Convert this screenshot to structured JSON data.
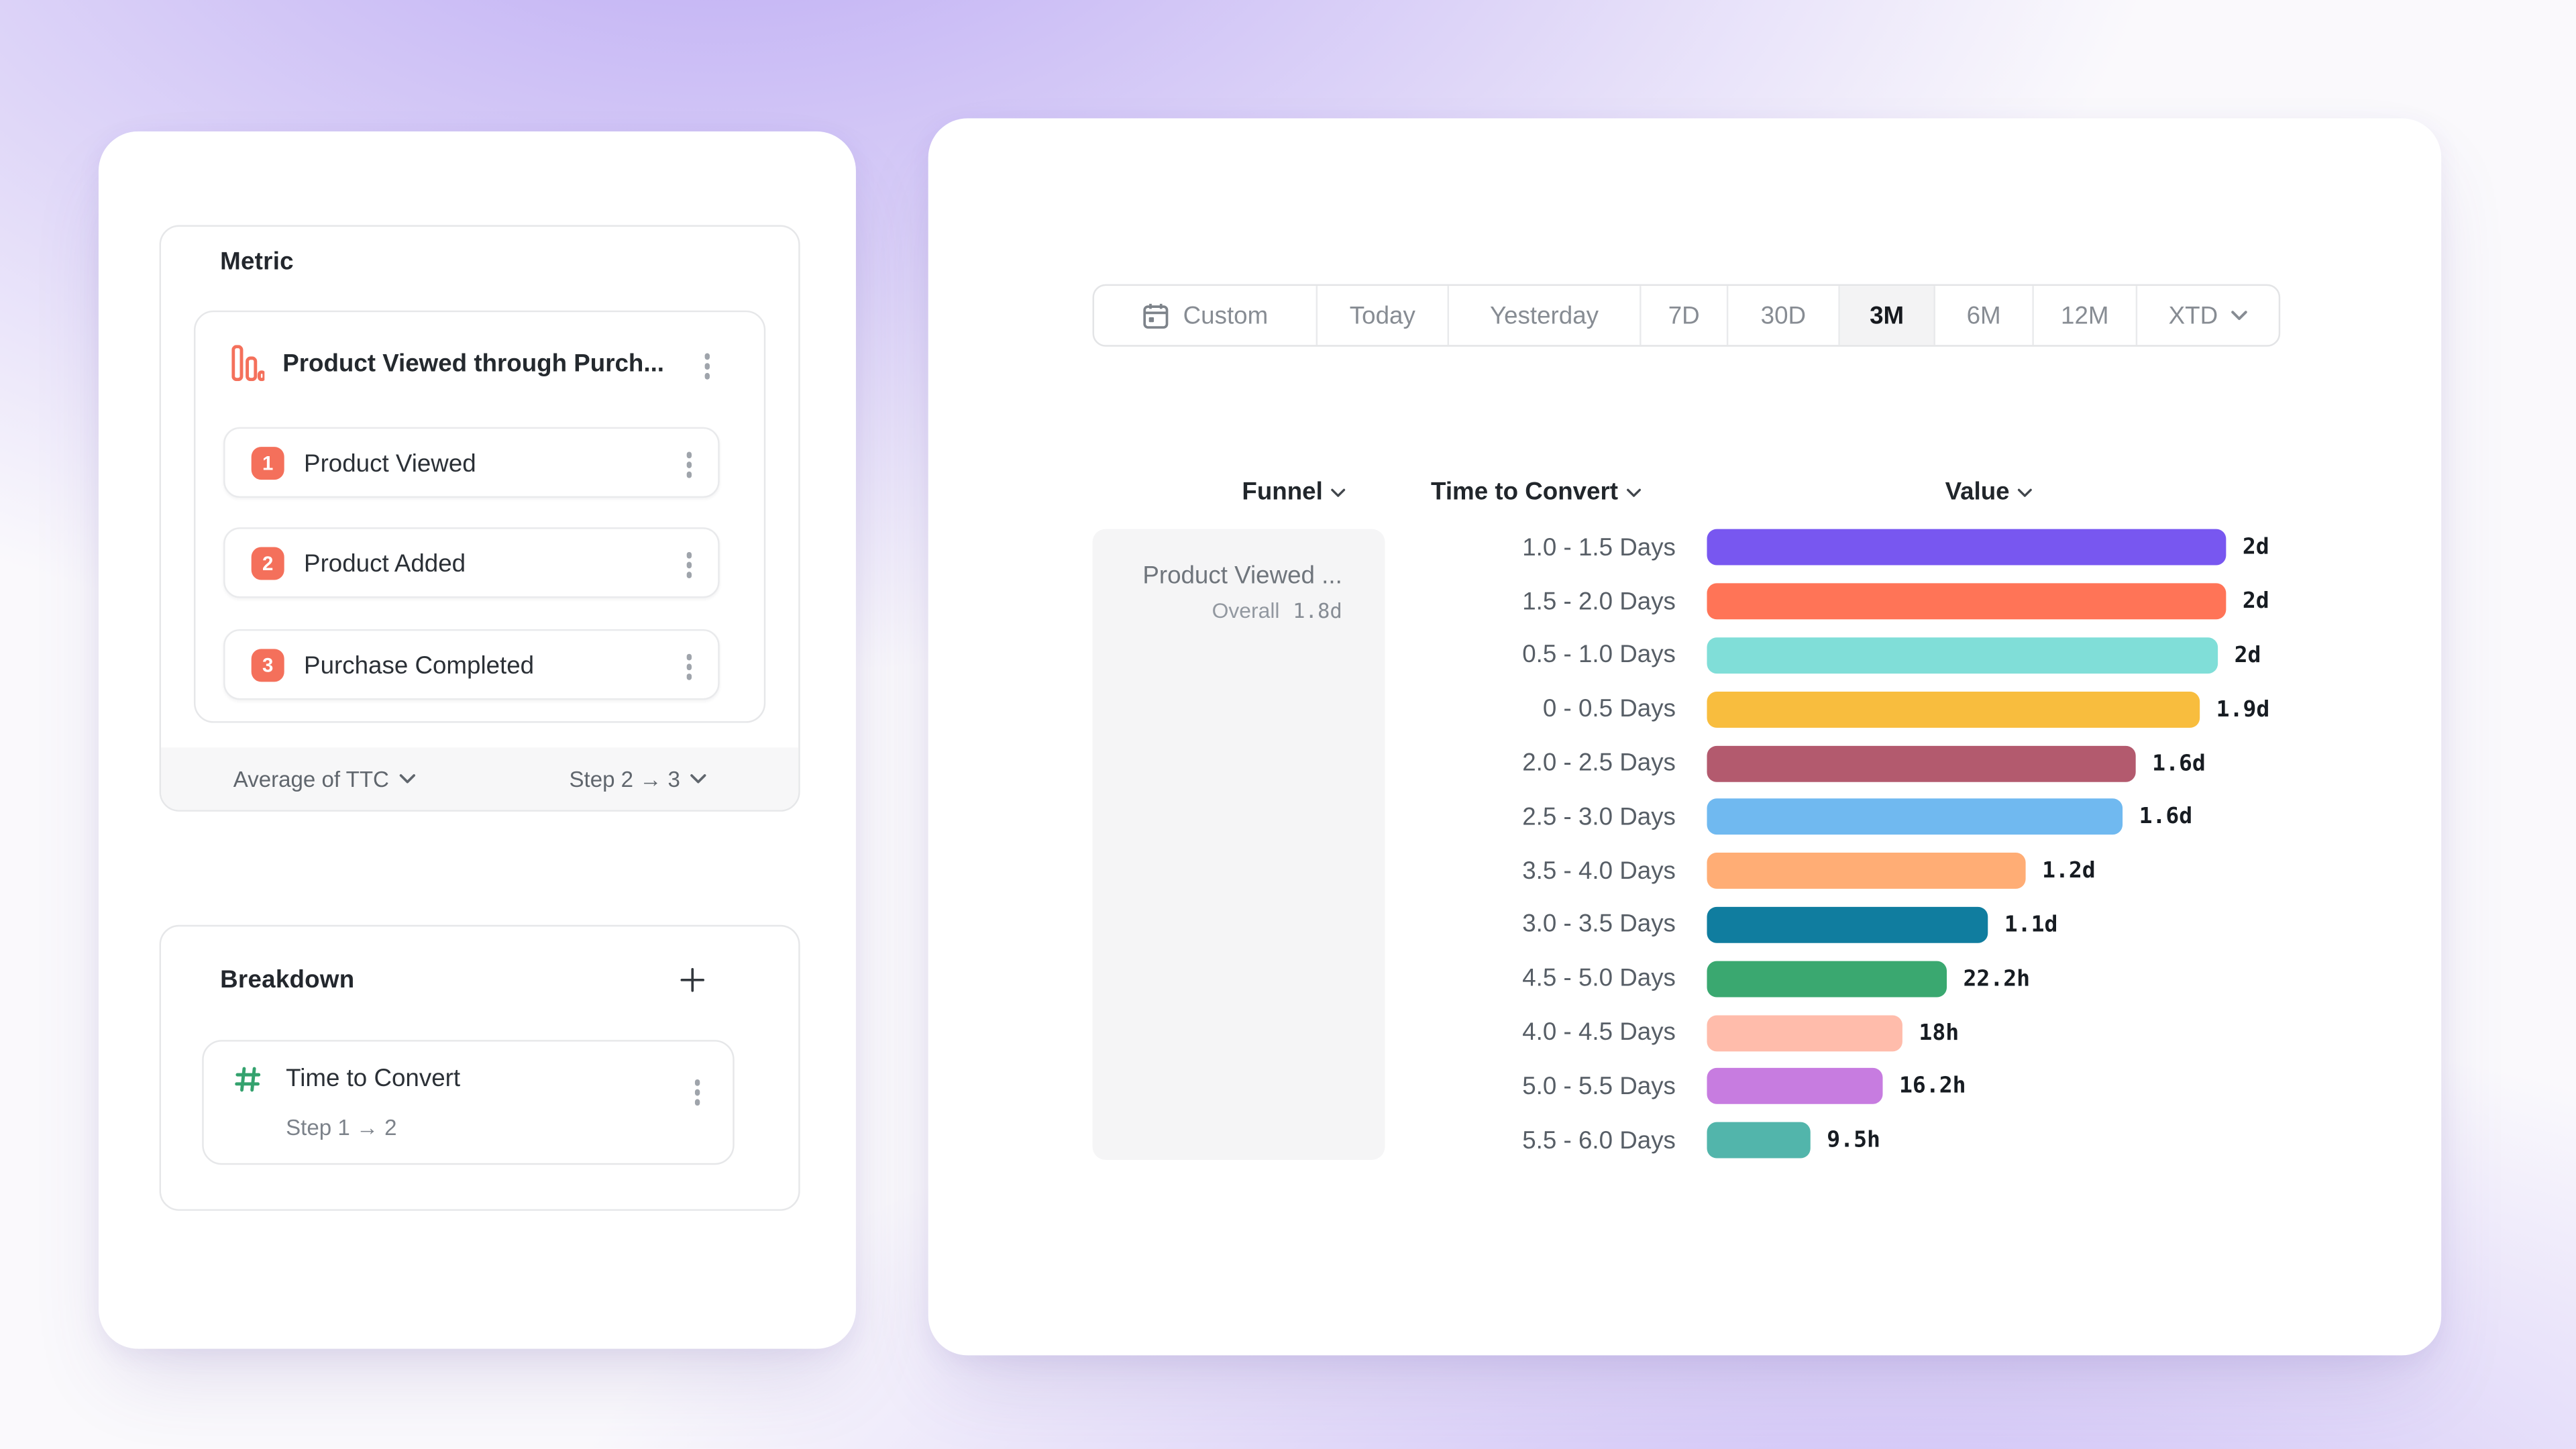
{
  "colors": {
    "accent_salmon": "#F4705B",
    "hash_green": "#34A26E",
    "selected_range_bg": "#F3F3F4",
    "funnel_cell_bg": "#F5F5F6"
  },
  "metric_panel": {
    "title": "Metric",
    "funnel": {
      "name": "Product Viewed through Purch...",
      "steps": [
        {
          "number": "1",
          "label": "Product Viewed"
        },
        {
          "number": "2",
          "label": "Product Added"
        },
        {
          "number": "3",
          "label": "Purchase Completed"
        }
      ],
      "aggregation_label": "Average of TTC",
      "step_range_label": "Step 2 → 3"
    },
    "breakdown": {
      "title": "Breakdown",
      "property": {
        "label": "Time to Convert",
        "sublabel": "Step 1 → 2"
      }
    }
  },
  "report_panel": {
    "date_picker": {
      "options": [
        {
          "label": "Custom",
          "icon": "calendar",
          "selected": false
        },
        {
          "label": "Today",
          "selected": false
        },
        {
          "label": "Yesterday",
          "selected": false
        },
        {
          "label": "7D",
          "selected": false
        },
        {
          "label": "30D",
          "selected": false
        },
        {
          "label": "3M",
          "selected": true
        },
        {
          "label": "6M",
          "selected": false
        },
        {
          "label": "12M",
          "selected": false
        },
        {
          "label": "XTD",
          "chevron": true,
          "selected": false
        }
      ]
    },
    "table": {
      "headers": [
        {
          "label": "Funnel"
        },
        {
          "label": "Time to Convert"
        },
        {
          "label": "Value"
        }
      ],
      "funnel_cell": {
        "name": "Product Viewed ...",
        "overall_label": "Overall",
        "overall_value": "1.8d"
      },
      "rows": [
        {
          "label": "1.0 - 1.5 Days",
          "value": "2d",
          "value_days": 2.0,
          "color": "#7857F0"
        },
        {
          "label": "1.5 - 2.0 Days",
          "value": "2d",
          "value_days": 2.0,
          "color": "#FF7457"
        },
        {
          "label": "0.5 - 1.0 Days",
          "value": "2d",
          "value_days": 1.97,
          "color": "#80DED8"
        },
        {
          "label": "0 - 0.5 Days",
          "value": "1.9d",
          "value_days": 1.9,
          "color": "#F8BD3E"
        },
        {
          "label": "2.0 - 2.5 Days",
          "value": "1.6d",
          "value_days": 1.65,
          "color": "#B35A6E"
        },
        {
          "label": "2.5 - 3.0 Days",
          "value": "1.6d",
          "value_days": 1.6,
          "color": "#70B9F0"
        },
        {
          "label": "3.5 - 4.0 Days",
          "value": "1.2d",
          "value_days": 1.23,
          "color": "#FFAD75"
        },
        {
          "label": "3.0 - 3.5 Days",
          "value": "1.1d",
          "value_days": 1.08,
          "color": "#107D9F"
        },
        {
          "label": "4.5 - 5.0 Days",
          "value": "22.2h",
          "value_days": 0.925,
          "color": "#3AA870"
        },
        {
          "label": "4.0 - 4.5 Days",
          "value": "18h",
          "value_days": 0.75,
          "color": "#FFBCAB"
        },
        {
          "label": "5.0 - 5.5 Days",
          "value": "16.2h",
          "value_days": 0.675,
          "color": "#C77CE0"
        },
        {
          "label": "5.5 - 6.0 Days",
          "value": "9.5h",
          "value_days": 0.396,
          "color": "#52B5AB"
        }
      ]
    }
  },
  "chart_data": {
    "type": "bar",
    "orientation": "horizontal",
    "title": "Time to Convert",
    "categories": [
      "1.0 - 1.5 Days",
      "1.5 - 2.0 Days",
      "0.5 - 1.0 Days",
      "0 - 0.5 Days",
      "2.0 - 2.5 Days",
      "2.5 - 3.0 Days",
      "3.5 - 4.0 Days",
      "3.0 - 3.5 Days",
      "4.5 - 5.0 Days",
      "4.0 - 4.5 Days",
      "5.0 - 5.5 Days",
      "5.5 - 6.0 Days"
    ],
    "values_display": [
      "2d",
      "2d",
      "2d",
      "1.9d",
      "1.6d",
      "1.6d",
      "1.2d",
      "1.1d",
      "22.2h",
      "18h",
      "16.2h",
      "9.5h"
    ],
    "values_days": [
      2.0,
      2.0,
      1.97,
      1.9,
      1.65,
      1.6,
      1.23,
      1.08,
      0.925,
      0.75,
      0.675,
      0.396
    ],
    "xlim_days": [
      0,
      2
    ],
    "bar_colors": [
      "#7857F0",
      "#FF7457",
      "#80DED8",
      "#F8BD3E",
      "#B35A6E",
      "#70B9F0",
      "#FFAD75",
      "#107D9F",
      "#3AA870",
      "#FFBCAB",
      "#C77CE0",
      "#52B5AB"
    ],
    "overall": {
      "series": "Product Viewed ...",
      "label": "Overall",
      "value": "1.8d"
    },
    "legend": "none",
    "grid": false
  }
}
